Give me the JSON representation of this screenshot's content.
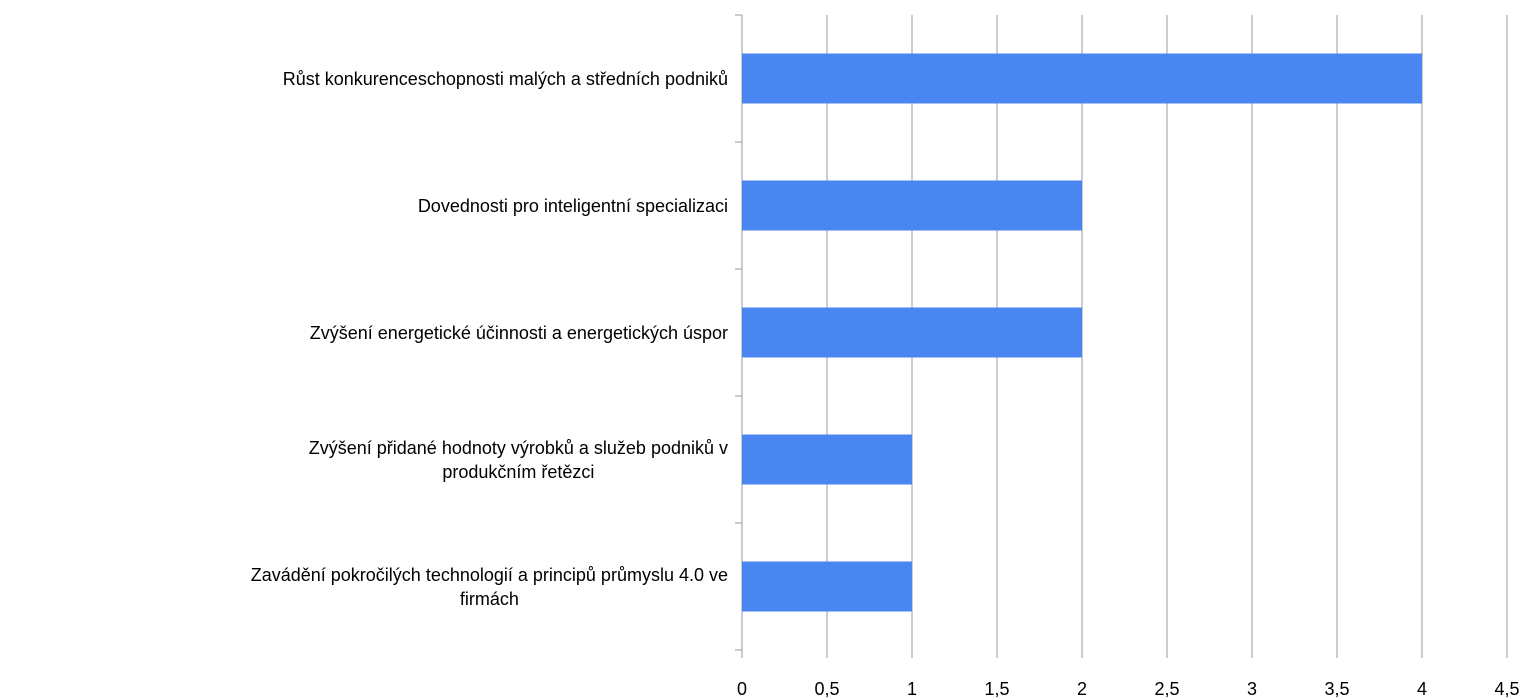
{
  "chart_data": {
    "type": "bar",
    "orientation": "horizontal",
    "categories": [
      "Růst konkurenceschopnosti malých a středních podniků",
      "Dovednosti pro inteligentní specializaci",
      "Zvýšení energetické účinnosti a energetických úspor",
      "Zvýšení přidané hodnoty výrobků a služeb podniků v\nprodukčním řetězci",
      "Zavádění pokročilých technologií a principů průmyslu 4.0 ve\nfirmách"
    ],
    "values": [
      4,
      2,
      2,
      1,
      1
    ],
    "color": "#4a86f0",
    "xlim": [
      0,
      4.5
    ],
    "xticks": [
      0,
      {
        "value": 0.5,
        "label": "0,5"
      },
      1,
      {
        "value": 1.5,
        "label": "1,5"
      },
      2,
      {
        "value": 2.5,
        "label": "2,5"
      },
      3,
      {
        "value": 3.5,
        "label": "3,5"
      },
      4,
      {
        "value": 4.5,
        "label": "4,5"
      }
    ],
    "grid": true
  }
}
